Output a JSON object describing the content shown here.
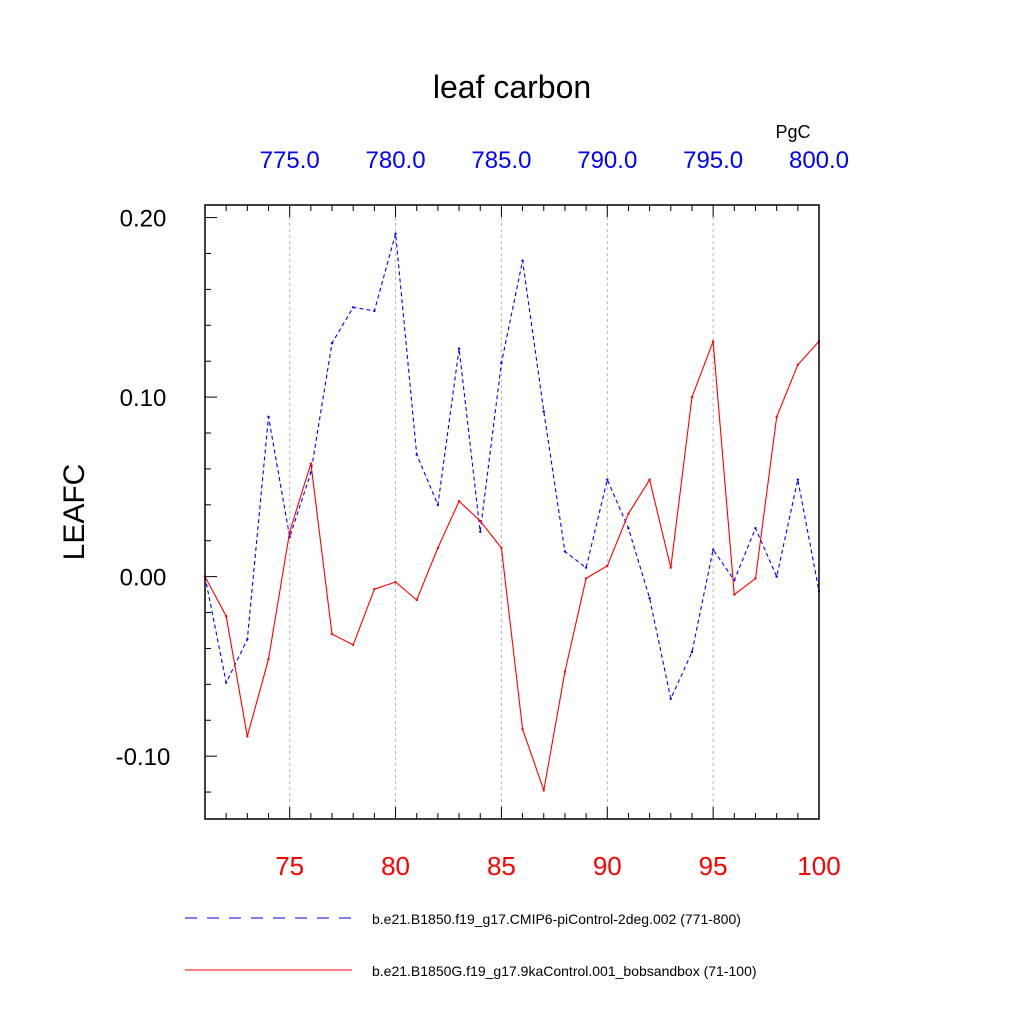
{
  "chart_data": {
    "type": "line",
    "title": "leaf carbon",
    "ylabel": "LEAFC",
    "units": "PgC",
    "ylim": [
      -0.135,
      0.207
    ],
    "yticks": [
      -0.1,
      0.0,
      0.1,
      0.2
    ],
    "ytick_labels": [
      "-0.10",
      "0.00",
      "0.10",
      "0.20"
    ],
    "bottom_axis": {
      "range": [
        71,
        100
      ],
      "ticks": [
        75,
        80,
        85,
        90,
        95,
        100
      ],
      "tick_labels": [
        "75",
        "80",
        "85",
        "90",
        "95",
        "100"
      ],
      "color": "#ff0000"
    },
    "top_axis": {
      "range": [
        771,
        800
      ],
      "ticks": [
        775,
        780,
        785,
        790,
        795,
        800
      ],
      "tick_labels": [
        "775.0",
        "780.0",
        "785.0",
        "790.0",
        "795.0",
        "800.0"
      ],
      "color": "#0000ff"
    },
    "grid": "vertical-dashed",
    "series": [
      {
        "name": "b.e21.B1850.f19_g17.CMIP6-piControl-2deg.002 (771-800)",
        "color": "#0000ff",
        "dash": "dashed",
        "axis": "top",
        "x": [
          771,
          772,
          773,
          774,
          775,
          776,
          777,
          778,
          779,
          780,
          781,
          782,
          783,
          784,
          785,
          786,
          787,
          788,
          789,
          790,
          791,
          792,
          793,
          794,
          795,
          796,
          797,
          798,
          799,
          800
        ],
        "values": [
          0.0,
          -0.059,
          -0.035,
          0.089,
          0.022,
          0.058,
          0.13,
          0.15,
          0.148,
          0.191,
          0.068,
          0.04,
          0.127,
          0.025,
          0.119,
          0.176,
          0.092,
          0.014,
          0.005,
          0.054,
          0.027,
          -0.012,
          -0.068,
          -0.042,
          0.015,
          -0.002,
          0.027,
          0.0,
          0.054,
          -0.008
        ]
      },
      {
        "name": "b.e21.B1850G.f19_g17.9kaControl.001_bobsandbox (71-100)",
        "color": "#ff0000",
        "dash": "solid",
        "axis": "bottom",
        "x": [
          71,
          72,
          73,
          74,
          75,
          76,
          77,
          78,
          79,
          80,
          81,
          82,
          83,
          84,
          85,
          86,
          87,
          88,
          89,
          90,
          91,
          92,
          93,
          94,
          95,
          96,
          97,
          98,
          99,
          100
        ],
        "values": [
          0.0,
          -0.022,
          -0.089,
          -0.046,
          0.025,
          0.063,
          -0.032,
          -0.038,
          -0.007,
          -0.003,
          -0.013,
          0.016,
          0.042,
          0.031,
          0.016,
          -0.085,
          -0.119,
          -0.053,
          -0.001,
          0.006,
          0.035,
          0.054,
          0.005,
          0.1,
          0.131,
          -0.01,
          -0.001,
          0.089,
          0.118,
          0.131
        ]
      }
    ]
  }
}
